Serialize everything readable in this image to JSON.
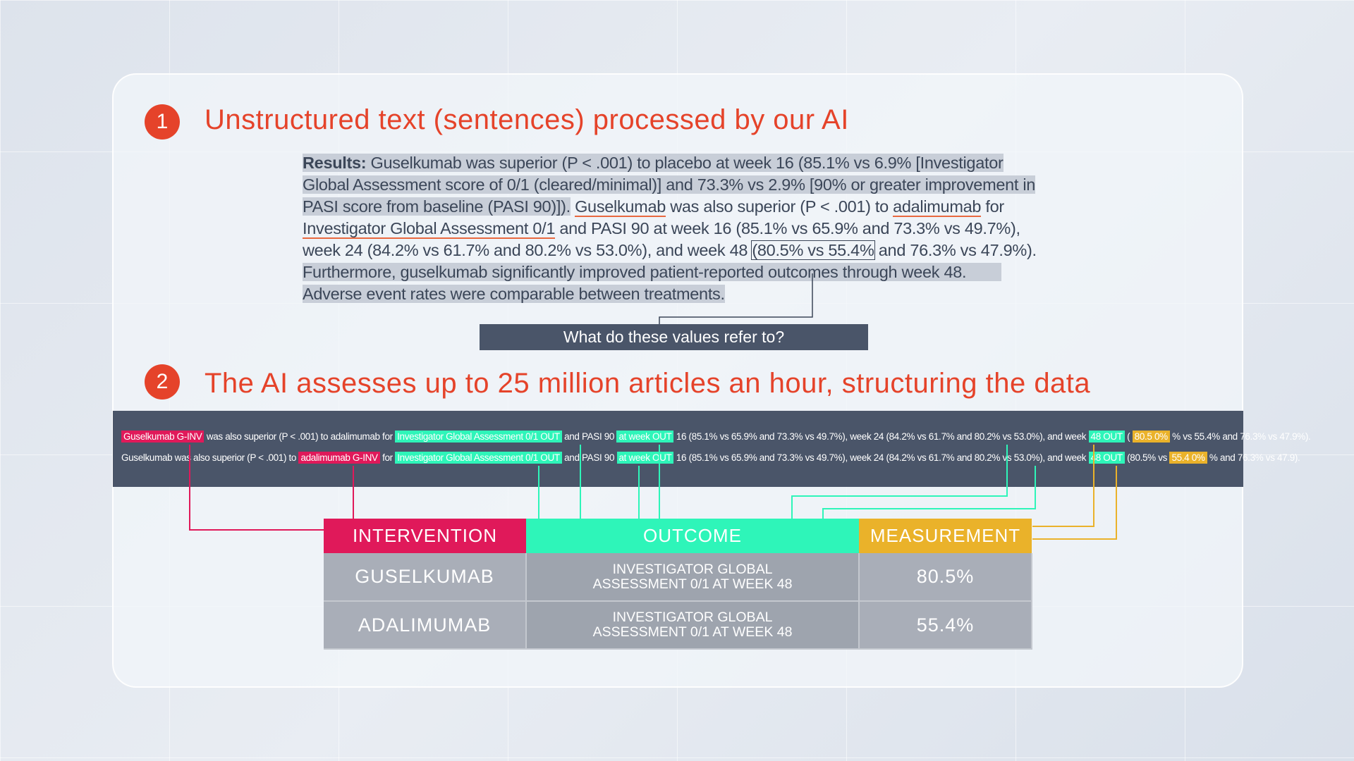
{
  "colors": {
    "accent": "#e5432a",
    "intervention": "#e0195a",
    "outcome": "#2ef5b9",
    "measurement": "#eab22a",
    "band": "#4a5569"
  },
  "step1": {
    "number": "1",
    "title": "Unstructured text (sentences) processed by our AI"
  },
  "step2": {
    "number": "2",
    "title": "The AI assesses up to 25 million articles an hour, structuring the data"
  },
  "paragraph": [
    [
      {
        "t": "Results:",
        "s": "hl",
        "b": true
      },
      {
        "t": " Guselkumab was superior (P < .001) to placebo at week 16 (85.1% vs 6.9% [Investigator",
        "s": "hl"
      }
    ],
    [
      {
        "t": "Global Assessment score of 0/1 (cleared/minimal)] and 73.3% vs 2.9% [90% or greater improvement in",
        "s": "hl"
      }
    ],
    [
      {
        "t": "PASI score from baseline (PASI 90)]).",
        "s": "hl"
      },
      {
        "t": " "
      },
      {
        "t": "Guselkumab",
        "s": "ul"
      },
      {
        "t": " was also superior (P < .001) to "
      },
      {
        "t": "adalimumab",
        "s": "ul"
      },
      {
        "t": " for"
      }
    ],
    [
      {
        "t": "Investigator Global Assessment 0/1",
        "s": "ul"
      },
      {
        "t": " and PASI 90 at week 16 (85.1% vs 65.9% and 73.3% vs 49.7%),"
      }
    ],
    [
      {
        "t": "week 24 (84.2% vs 61.7% and 80.2% vs 53.0%), and week 48 "
      },
      {
        "t": "(80.5% vs 55.4%",
        "s": "box"
      },
      {
        "t": " and 76.3% vs 47.9%)."
      }
    ],
    [
      {
        "t": "Furthermore, guselkumab significantly improved patient-reported outcomes through week 48.        ",
        "s": "hl"
      }
    ],
    [
      {
        "t": "Adverse event rates were comparable between treatments.",
        "s": "hl"
      }
    ]
  ],
  "question": "What do these values refer to?",
  "annotated_rows": [
    [
      {
        "t": "Guselkumab G-INV",
        "c": "int"
      },
      {
        "t": " was also superior (P < .001) to adalimumab for "
      },
      {
        "t": "Investigator Global Assessment 0/1 OUT",
        "c": "out"
      },
      {
        "t": " and PASI 90 "
      },
      {
        "t": "at week OUT",
        "c": "out"
      },
      {
        "t": " 16 (85.1% vs 65.9% and 73.3% vs 49.7%), week 24 (84.2% vs 61.7% and 80.2% vs 53.0%), and week "
      },
      {
        "t": "48 OUT",
        "c": "out"
      },
      {
        "t": " ( "
      },
      {
        "t": "80.5 0%",
        "c": "meas"
      },
      {
        "t": " % vs 55.4% and 76.3% vs 47.9%)."
      }
    ],
    [
      {
        "t": "Guselkumab was also superior (P < .001) to "
      },
      {
        "t": "adalimumab G-INV",
        "c": "int"
      },
      {
        "t": " for "
      },
      {
        "t": "Investigator Global Assessment 0/1 OUT",
        "c": "out"
      },
      {
        "t": " and PASI 90 "
      },
      {
        "t": "at week OUT",
        "c": "out"
      },
      {
        "t": " 16 (85.1% vs 65.9% and 73.3% vs 49.7%), week 24 (84.2% vs 61.7% and 80.2% vs 53.0%), and week "
      },
      {
        "t": "48 OUT",
        "c": "out"
      },
      {
        "t": " (80.5% vs "
      },
      {
        "t": "55.4 0%",
        "c": "meas"
      },
      {
        "t": " % and 76.3% vs 47.9)."
      }
    ]
  ],
  "table": {
    "headers": [
      "INTERVENTION",
      "OUTCOME",
      "MEASUREMENT"
    ],
    "rows": [
      {
        "intervention": "GUSELKUMAB",
        "outcome_line1": "INVESTIGATOR GLOBAL",
        "outcome_line2": "ASSESSMENT 0/1 AT WEEK 48",
        "measurement": "80.5%"
      },
      {
        "intervention": "ADALIMUMAB",
        "outcome_line1": "INVESTIGATOR GLOBAL",
        "outcome_line2": "ASSESSMENT 0/1 AT WEEK 48",
        "measurement": "55.4%"
      }
    ]
  }
}
